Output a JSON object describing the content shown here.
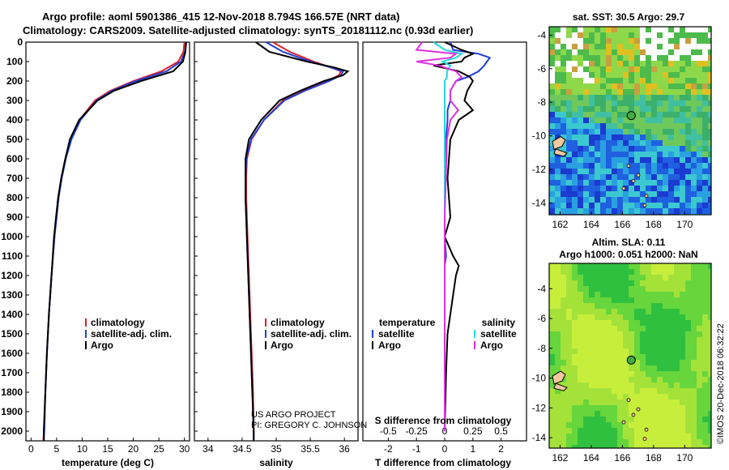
{
  "header": {
    "line1": "Argo profile: aoml 5901386_415 12-Nov-2018 8.794S 166.57E (NRT data)",
    "line2": "Climatology: CARS2009. Satellite-adjusted climatology: synTS_20181112.nc (0.93d earlier)"
  },
  "y_ticks": [
    "0",
    "100",
    "200",
    "300",
    "400",
    "500",
    "600",
    "700",
    "800",
    "900",
    "1000",
    "1100",
    "1200",
    "1300",
    "1400",
    "1500",
    "1600",
    "1700",
    "1800",
    "1900",
    "2000"
  ],
  "credit": {
    "line1": "US ARGO PROJECT",
    "line2": "PI: GREGORY C. JOHNSON"
  },
  "side_stamp": "©IMOS 20-Dec-2018 06:32:22",
  "colors": {
    "climatology": "#e0202a",
    "satellite": "#1f3fd8",
    "argo": "#000000",
    "sat_salinity": "#22d8e0",
    "argo_salinity": "#e030e0"
  },
  "chart_data": [
    {
      "type": "line",
      "id": "temperature",
      "xlabel": "temperature (deg C)",
      "xlim": [
        -1,
        31
      ],
      "xticks": [
        0,
        5,
        10,
        15,
        20,
        25,
        30
      ],
      "ylim": [
        2050,
        0
      ],
      "legend": [
        "climatology",
        "satellite-adj. clim.",
        "Argo"
      ],
      "depth": [
        0,
        50,
        100,
        150,
        200,
        250,
        300,
        400,
        500,
        600,
        700,
        800,
        900,
        1000,
        1200,
        1400,
        1600,
        1800,
        2000,
        2050
      ],
      "series": [
        {
          "name": "climatology",
          "values": [
            30.0,
            29.8,
            28.8,
            25.5,
            20.0,
            15.5,
            12.5,
            9.5,
            7.8,
            6.7,
            5.9,
            5.3,
            4.9,
            4.6,
            4.0,
            3.5,
            3.1,
            2.8,
            2.5,
            2.4
          ]
        },
        {
          "name": "satellite-adj. clim.",
          "values": [
            30.4,
            30.1,
            29.3,
            26.5,
            20.5,
            15.8,
            12.8,
            9.7,
            7.9,
            6.8,
            6.0,
            5.4,
            5.0,
            4.6,
            4.0,
            3.5,
            3.1,
            2.8,
            2.6,
            2.5
          ]
        },
        {
          "name": "Argo",
          "values": [
            30.3,
            30.2,
            29.7,
            27.8,
            21.5,
            16.2,
            13.0,
            9.4,
            7.6,
            6.7,
            5.9,
            5.3,
            4.9,
            4.5,
            4.0,
            3.5,
            3.1,
            2.8,
            2.5,
            2.5
          ]
        }
      ]
    },
    {
      "type": "line",
      "id": "salinity",
      "xlabel": "salinity",
      "xlim": [
        33.8,
        36.2
      ],
      "xticks": [
        34,
        34.5,
        35,
        35.5,
        36
      ],
      "xticklabels": [
        "34",
        "34.5",
        "35",
        "35.5",
        "36"
      ],
      "ylim": [
        2050,
        0
      ],
      "legend": [
        "climatology",
        "satellite-adj. clim.",
        "Argo"
      ],
      "depth": [
        0,
        50,
        100,
        130,
        150,
        170,
        200,
        250,
        300,
        400,
        500,
        600,
        700,
        800,
        1000,
        1200,
        1400,
        1600,
        1800,
        2000,
        2050
      ],
      "series": [
        {
          "name": "climatology",
          "values": [
            34.95,
            35.2,
            35.55,
            35.8,
            35.95,
            35.92,
            35.75,
            35.4,
            35.1,
            34.82,
            34.64,
            34.57,
            34.56,
            34.56,
            34.58,
            34.6,
            34.62,
            34.64,
            34.66,
            34.67,
            34.67
          ]
        },
        {
          "name": "satellite-adj. clim.",
          "values": [
            34.85,
            35.1,
            35.5,
            35.8,
            35.98,
            35.95,
            35.78,
            35.42,
            35.12,
            34.82,
            34.63,
            34.56,
            34.55,
            34.55,
            34.57,
            34.59,
            34.61,
            34.63,
            34.65,
            34.67,
            34.67
          ]
        },
        {
          "name": "Argo",
          "values": [
            34.7,
            34.9,
            35.45,
            35.85,
            36.05,
            35.98,
            35.7,
            35.35,
            35.05,
            34.78,
            34.6,
            34.55,
            34.55,
            34.55,
            34.57,
            34.59,
            34.61,
            34.63,
            34.65,
            34.67,
            34.67
          ]
        }
      ]
    },
    {
      "type": "line",
      "id": "differences",
      "xlabel": "T difference from climatology",
      "xlabel2": "S difference from climatology",
      "xlim": [
        -2.9,
        2.9
      ],
      "xticks": [
        -2,
        -1,
        0,
        1,
        2
      ],
      "xticks2": [
        -0.5,
        -0.25,
        0,
        0.25,
        0.5
      ],
      "xticklabels2": [
        "-0.5",
        "-0.25",
        "0",
        "0.25",
        "0.5"
      ],
      "ylim": [
        2050,
        0
      ],
      "legend_left_title": "temperature",
      "legend_left": [
        "satellite",
        "Argo"
      ],
      "legend_right_title": "salinity",
      "legend_right": [
        "satellite",
        "Argo"
      ],
      "depth": [
        0,
        40,
        60,
        80,
        100,
        120,
        150,
        180,
        200,
        250,
        300,
        350,
        400,
        500,
        700,
        900,
        1000,
        1100,
        1150,
        1200,
        1300,
        1500,
        1700,
        2000
      ],
      "series": [
        {
          "name": "temperature satellite",
          "values": [
            0.2,
            0.3,
            1.2,
            1.6,
            1.5,
            1.4,
            1.2,
            0.8,
            0.4,
            0.2,
            0.2,
            0.1,
            0.1,
            0.05,
            0.0,
            0.0,
            0.0,
            0.05,
            0.0,
            0.0,
            0.0,
            0.0,
            0.0,
            0.0
          ]
        },
        {
          "name": "temperature Argo",
          "values": [
            0.0,
            0.6,
            1.0,
            0.7,
            0.6,
            -0.4,
            0.5,
            0.9,
            1.0,
            0.8,
            0.7,
            1.0,
            0.5,
            0.2,
            0.1,
            0.2,
            0.0,
            0.3,
            0.5,
            0.4,
            0.3,
            0.1,
            0.05,
            0.0
          ]
        },
        {
          "name": "salinity satellite",
          "values": [
            -0.1,
            0.0,
            0.15,
            0.1,
            -0.02,
            0.05,
            0.02,
            0.02,
            0.0,
            0.0,
            0.0,
            0.0,
            0.0,
            0.0,
            0.0,
            0.0,
            0.0,
            0.0,
            0.0,
            0.0,
            0.0,
            0.0,
            0.0,
            0.0
          ]
        },
        {
          "name": "salinity Argo",
          "values": [
            -0.2,
            -0.25,
            0.1,
            0.05,
            -0.25,
            -0.05,
            0.1,
            0.15,
            0.1,
            0.05,
            0.05,
            0.12,
            0.05,
            0.02,
            0.01,
            0.0,
            0.0,
            0.0,
            0.0,
            0.0,
            0.0,
            0.0,
            0.0,
            0.0
          ]
        }
      ]
    },
    {
      "type": "heatmap",
      "id": "sst_map",
      "title": "sat. SST: 30.5 Argo: 29.7",
      "xticks": [
        162,
        164,
        166,
        168,
        170
      ],
      "yticks": [
        -4,
        -6,
        -8,
        -10,
        -12,
        -14
      ],
      "float_position": {
        "lon": 166.57,
        "lat": -8.794
      }
    },
    {
      "type": "heatmap",
      "id": "sla_map",
      "title_line1": "Altim. SLA: 0.11",
      "title_line2": "Argo h1000: 0.051 h2000: NaN",
      "xticks": [
        162,
        164,
        166,
        168,
        170
      ],
      "yticks": [
        -4,
        -6,
        -8,
        -10,
        -12,
        -14
      ],
      "float_position": {
        "lon": 166.57,
        "lat": -8.794
      }
    }
  ]
}
